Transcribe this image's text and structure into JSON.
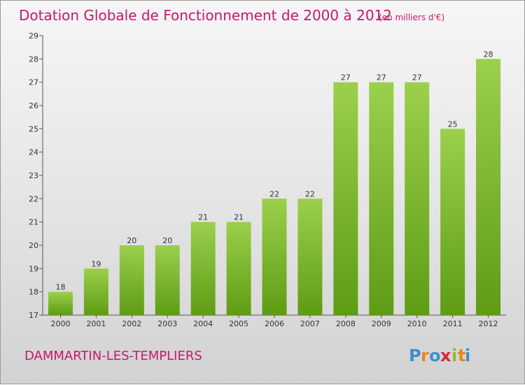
{
  "title": "Dotation Globale de Fonctionnement de 2000 à 2012",
  "unit": "(en milliers d'€)",
  "commune": "DAMMARTIN-LES-TEMPLIERS",
  "logo": {
    "letters": [
      "P",
      "r",
      "o",
      "x",
      "i",
      "t",
      "i"
    ],
    "colors": [
      "#3a8fd0",
      "#e8871e",
      "#3a8fd0",
      "#d6283a",
      "#8cbf2e",
      "#e8871e",
      "#3a8fd0"
    ]
  },
  "colors": {
    "title": "#c8176e",
    "bar_top": "#9bd04c",
    "bar_bottom": "#5e9c14",
    "axis": "#555555"
  },
  "chart_data": {
    "type": "bar",
    "title": "Dotation Globale de Fonctionnement de 2000 à 2012",
    "categories": [
      "2000",
      "2001",
      "2002",
      "2003",
      "2004",
      "2005",
      "2006",
      "2007",
      "2008",
      "2009",
      "2010",
      "2011",
      "2012"
    ],
    "values": [
      18,
      19,
      20,
      20,
      21,
      21,
      22,
      22,
      27,
      27,
      27,
      25,
      28
    ],
    "ylim": [
      17,
      29
    ],
    "yticks": [
      17,
      18,
      19,
      20,
      21,
      22,
      23,
      24,
      25,
      26,
      27,
      28,
      29
    ],
    "xlabel": "",
    "ylabel": "",
    "grid": false,
    "data_labels": true
  }
}
